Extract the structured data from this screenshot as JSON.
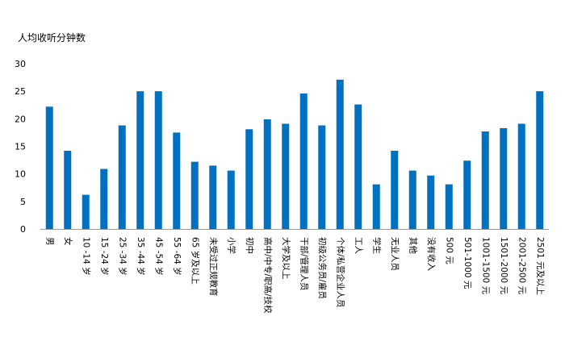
{
  "chart_data": {
    "type": "bar",
    "title": "",
    "ylabel": "人均收听分钟数",
    "xlabel": "",
    "ylim": [
      0,
      30
    ],
    "yticks": [
      0,
      5,
      10,
      15,
      20,
      25,
      30
    ],
    "grid": false,
    "bar_color": "#0070C0",
    "categories": [
      "男",
      "女",
      "10 -14 岁",
      "15 -24 岁",
      "25 -34 岁",
      "35 -44 岁",
      "45 -54 岁",
      "55 -64 岁",
      "65 岁及以上",
      "未受过正规教育",
      "小学",
      "初中",
      "高中/中专/职高/技校",
      "大学及以上",
      "干部/管理人员",
      "初级公务员/雇员",
      "个体/私营企业人员",
      "工人",
      "学生",
      "无业人员",
      "其他",
      "没有收入",
      "500 元",
      "501-1000 元",
      "1001-1500 元",
      "1501-2000 元",
      "2001-2500 元",
      "2501 元及以上"
    ],
    "values": [
      22.2,
      14.2,
      6.2,
      10.9,
      18.8,
      25.0,
      25.0,
      17.5,
      12.2,
      11.5,
      10.6,
      18.1,
      19.9,
      19.1,
      24.6,
      18.8,
      27.1,
      22.6,
      8.1,
      14.2,
      10.6,
      9.7,
      8.1,
      12.4,
      17.7,
      18.3,
      19.1,
      25.0
    ]
  }
}
